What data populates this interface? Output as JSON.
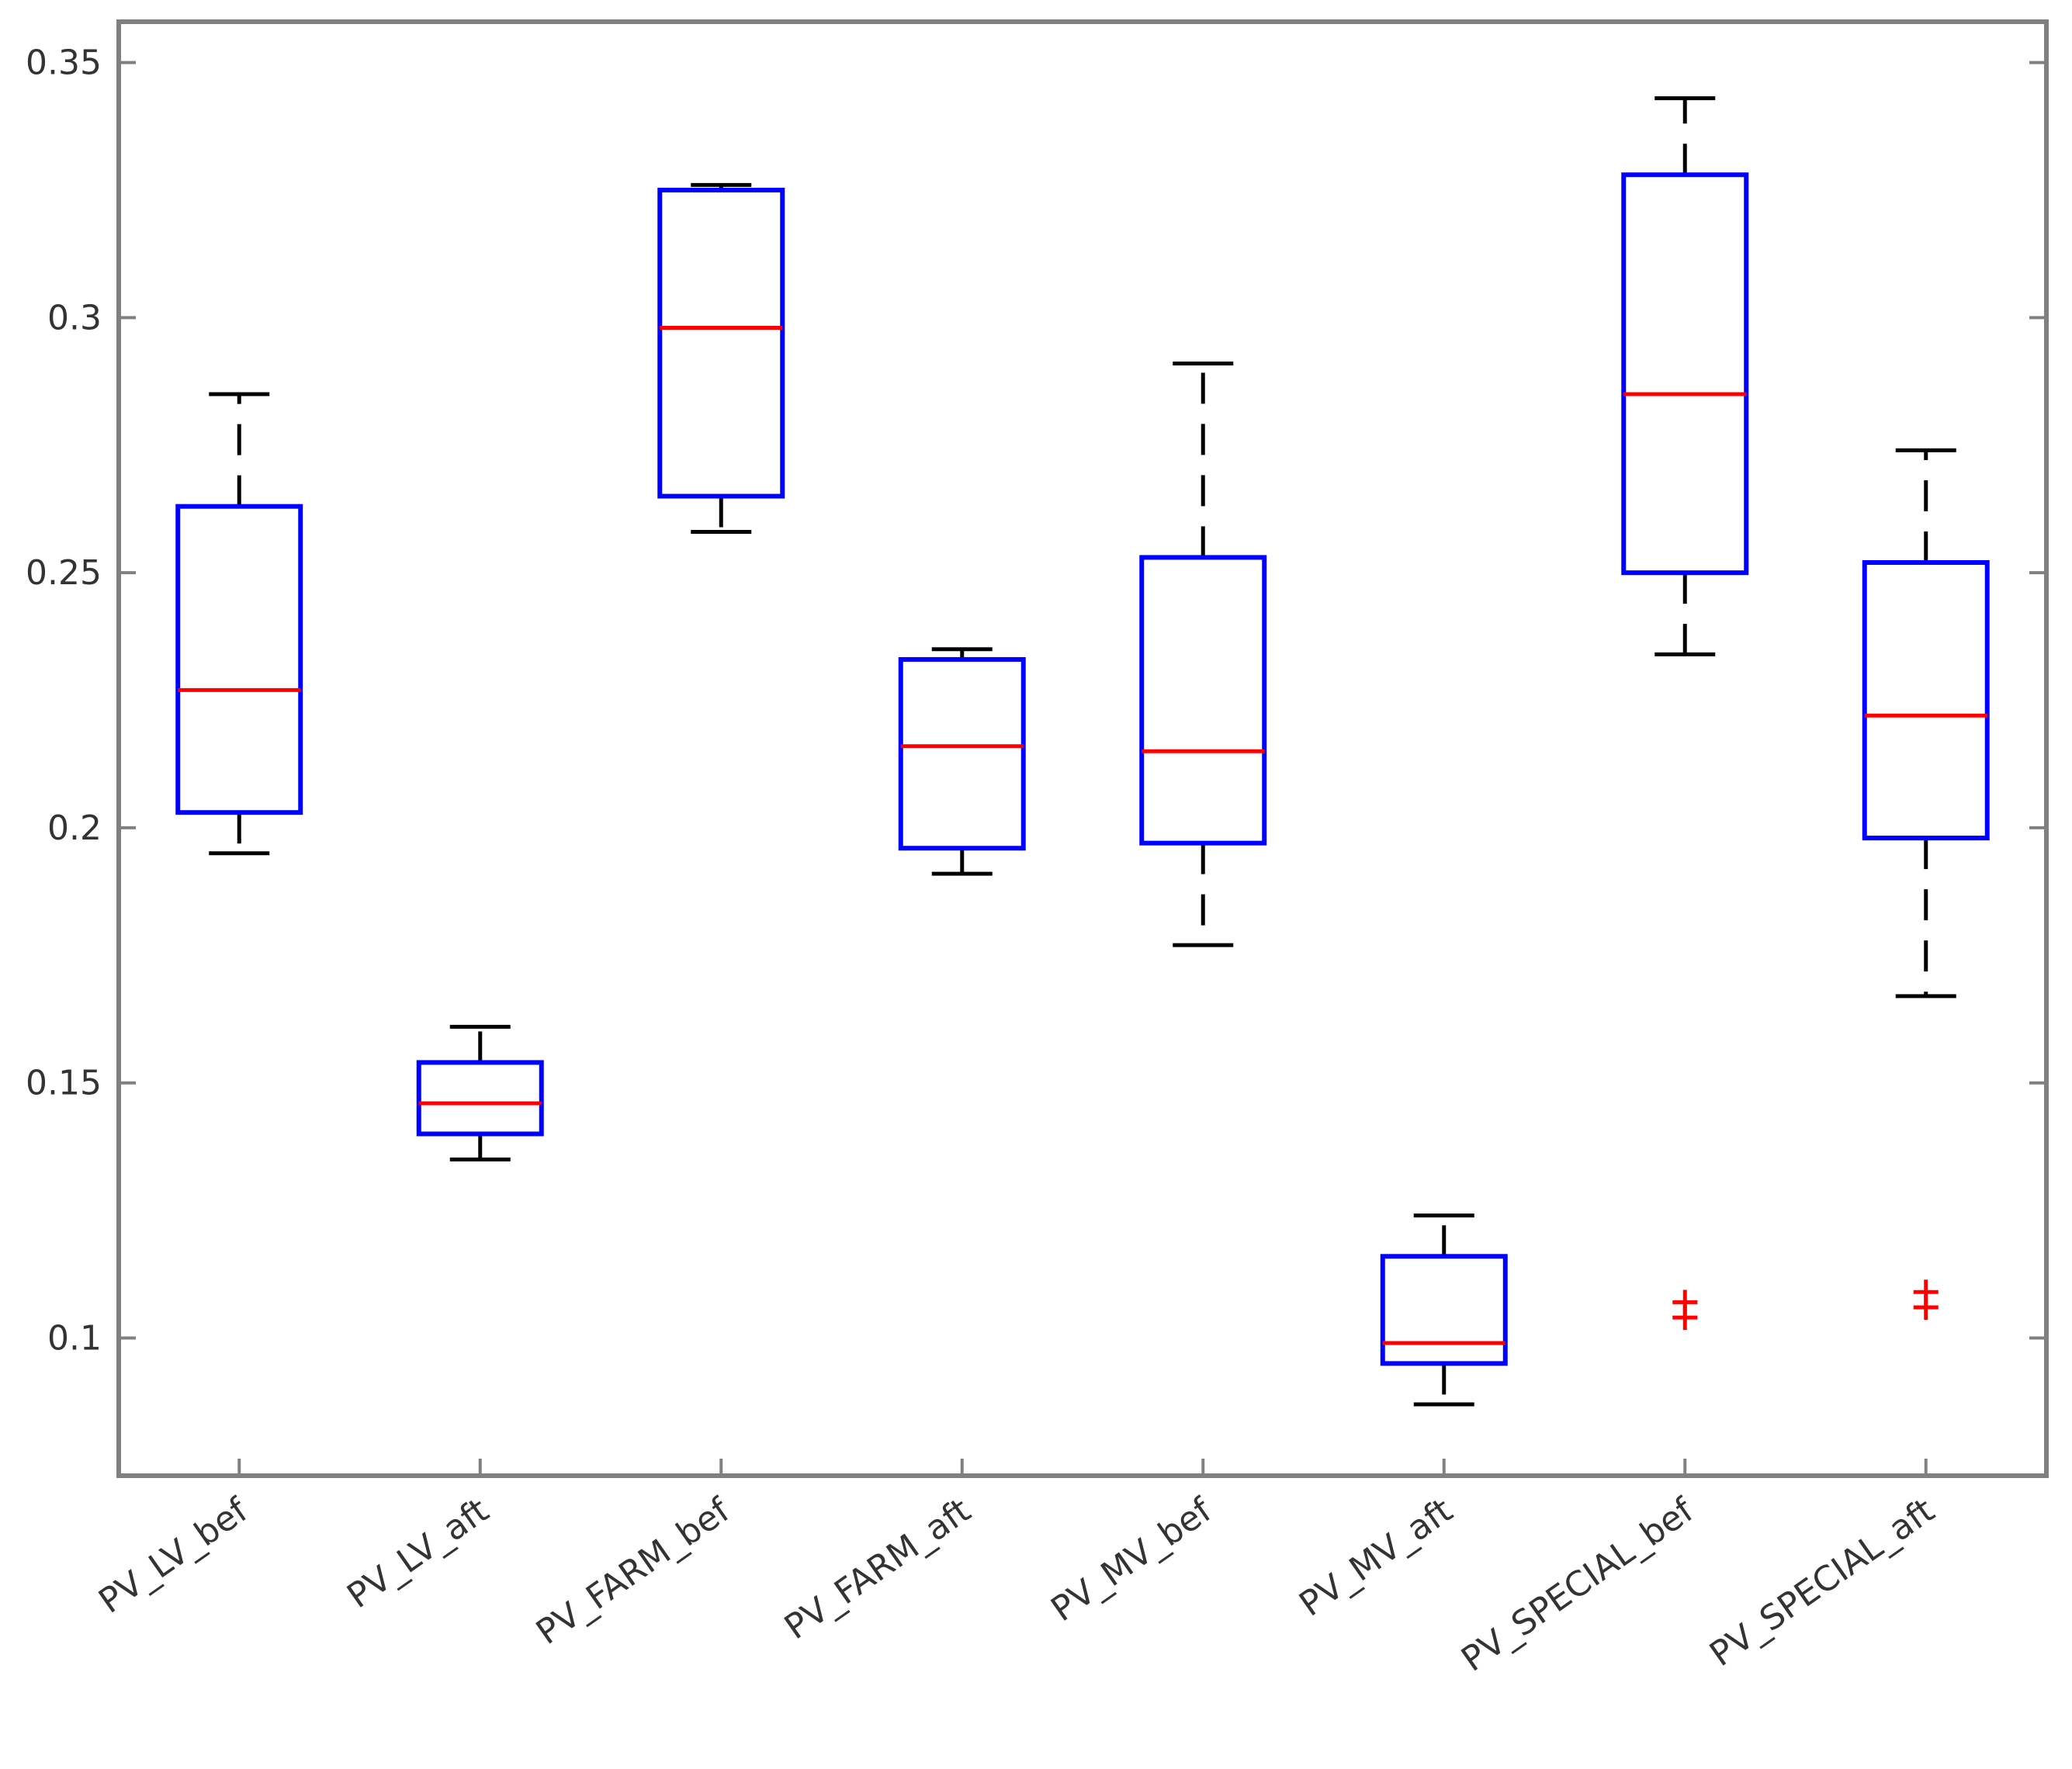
{
  "chart_data": {
    "type": "boxplot",
    "title": "",
    "xlabel": "",
    "ylabel": "",
    "ylim": [
      0.073,
      0.358
    ],
    "yticks": [
      0.1,
      0.15,
      0.2,
      0.25,
      0.3,
      0.35
    ],
    "ytick_labels": [
      "0.1",
      "0.15",
      "0.2",
      "0.25",
      "0.3",
      "0.35"
    ],
    "categories": [
      "PV_LV_bef",
      "PV_LV_aft",
      "PV_FARM_bef",
      "PV_FARM_aft",
      "PV_MV_bef",
      "PV_MV_aft",
      "PV_SPECIAL_bef",
      "PV_SPECIAL_aft"
    ],
    "boxes": [
      {
        "label": "PV_LV_bef",
        "whisker_low": 0.195,
        "q1": 0.203,
        "median": 0.227,
        "q3": 0.263,
        "whisker_high": 0.285,
        "outliers": []
      },
      {
        "label": "PV_LV_aft",
        "whisker_low": 0.135,
        "q1": 0.14,
        "median": 0.146,
        "q3": 0.154,
        "whisker_high": 0.161,
        "outliers": []
      },
      {
        "label": "PV_FARM_bef",
        "whisker_low": 0.258,
        "q1": 0.265,
        "median": 0.298,
        "q3": 0.325,
        "whisker_high": 0.326,
        "outliers": []
      },
      {
        "label": "PV_FARM_aft",
        "whisker_low": 0.191,
        "q1": 0.196,
        "median": 0.216,
        "q3": 0.233,
        "whisker_high": 0.235,
        "outliers": []
      },
      {
        "label": "PV_MV_bef",
        "whisker_low": 0.177,
        "q1": 0.197,
        "median": 0.215,
        "q3": 0.253,
        "whisker_high": 0.291,
        "outliers": []
      },
      {
        "label": "PV_MV_aft",
        "whisker_low": 0.087,
        "q1": 0.095,
        "median": 0.099,
        "q3": 0.116,
        "whisker_high": 0.124,
        "outliers": []
      },
      {
        "label": "PV_SPECIAL_bef",
        "whisker_low": 0.234,
        "q1": 0.25,
        "median": 0.285,
        "q3": 0.328,
        "whisker_high": 0.343,
        "outliers": [
          0.104,
          0.107
        ]
      },
      {
        "label": "PV_SPECIAL_aft",
        "whisker_low": 0.167,
        "q1": 0.198,
        "median": 0.222,
        "q3": 0.252,
        "whisker_high": 0.274,
        "outliers": [
          0.106,
          0.109
        ]
      }
    ],
    "colors": {
      "box": "#0000ff",
      "median": "#ff0000",
      "whisker": "#000000",
      "outlier": "#ff0000",
      "axis": "#808080"
    },
    "outlier_marker": "+",
    "grid": false,
    "legend": "none"
  }
}
